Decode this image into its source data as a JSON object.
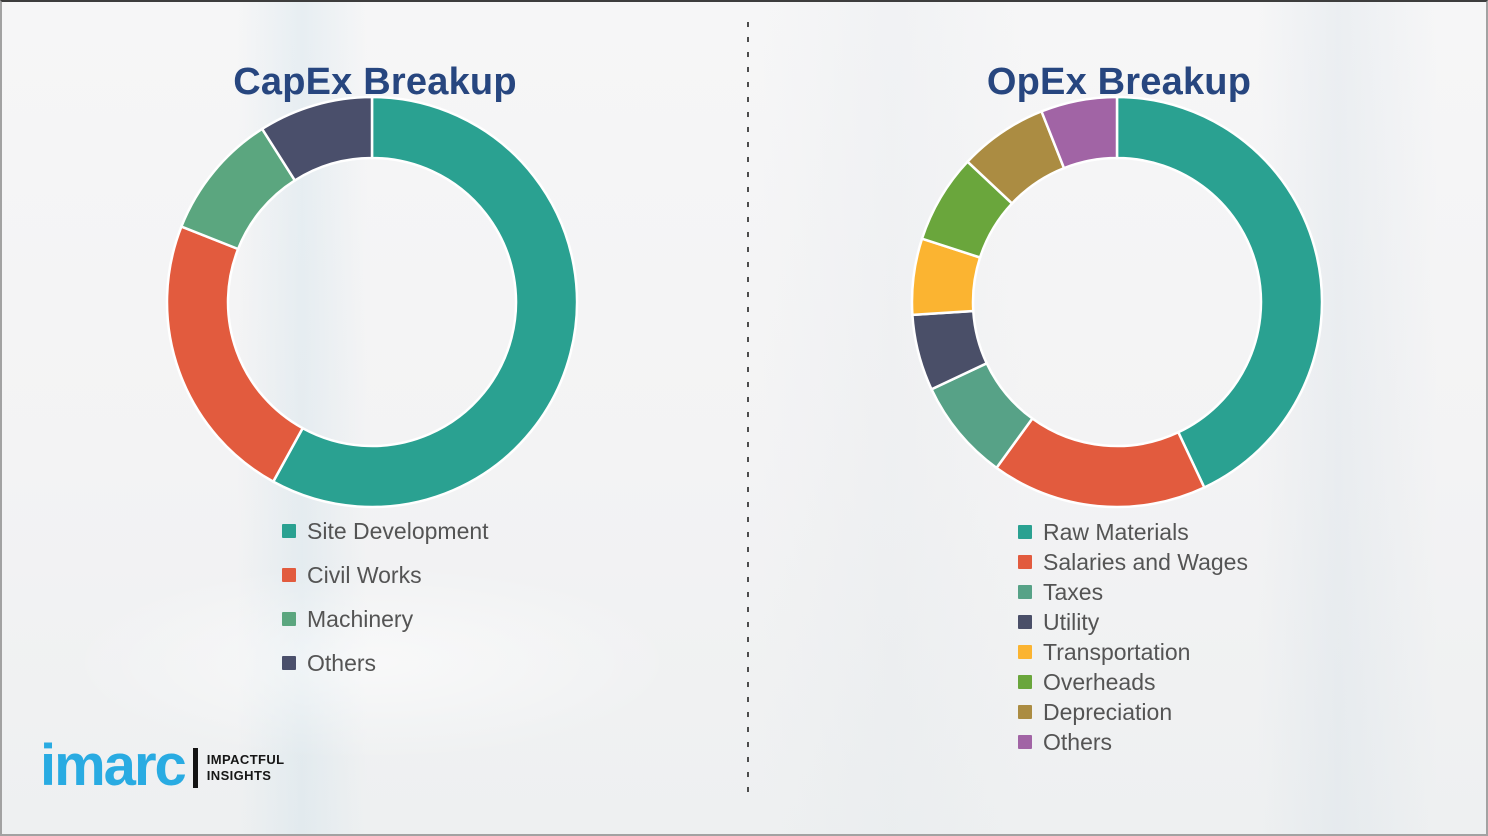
{
  "theme": {
    "background": "#f3f3f4",
    "title_color": "#27467f",
    "legend_text_color": "#545454",
    "divider_color": "#4d4d4d",
    "separator_color": "#ffffff"
  },
  "chart_data": [
    {
      "type": "pie",
      "subtype": "donut",
      "title": "CapEx Breakup",
      "categories": [
        "Site Development",
        "Civil Works",
        "Machinery",
        "Others"
      ],
      "values": [
        58,
        23,
        10,
        9
      ],
      "colors": [
        "#2aa191",
        "#e25b3e",
        "#5ba67f",
        "#4a4f6b"
      ],
      "units": "percent-estimated",
      "start_angle_deg": 0,
      "direction": "clockwise",
      "legend_position": "below-left",
      "data_labels": "none"
    },
    {
      "type": "pie",
      "subtype": "donut",
      "title": "OpEx Breakup",
      "categories": [
        "Raw Materials",
        "Salaries and Wages",
        "Taxes",
        "Utility",
        "Transportation",
        "Overheads",
        "Depreciation",
        "Others"
      ],
      "values": [
        43,
        17,
        8,
        6,
        6,
        7,
        7,
        6
      ],
      "colors": [
        "#2aa191",
        "#e25b3e",
        "#57a287",
        "#4a4f68",
        "#fbb431",
        "#6aa63c",
        "#ab8c42",
        "#a164a5"
      ],
      "units": "percent-estimated",
      "start_angle_deg": 0,
      "direction": "clockwise",
      "legend_position": "below-left",
      "data_labels": "none"
    }
  ],
  "logo": {
    "brand": "imarc",
    "brand_color": "#29abe2",
    "tagline_line1": "IMPACTFUL",
    "tagline_line2": "INSIGHTS"
  }
}
